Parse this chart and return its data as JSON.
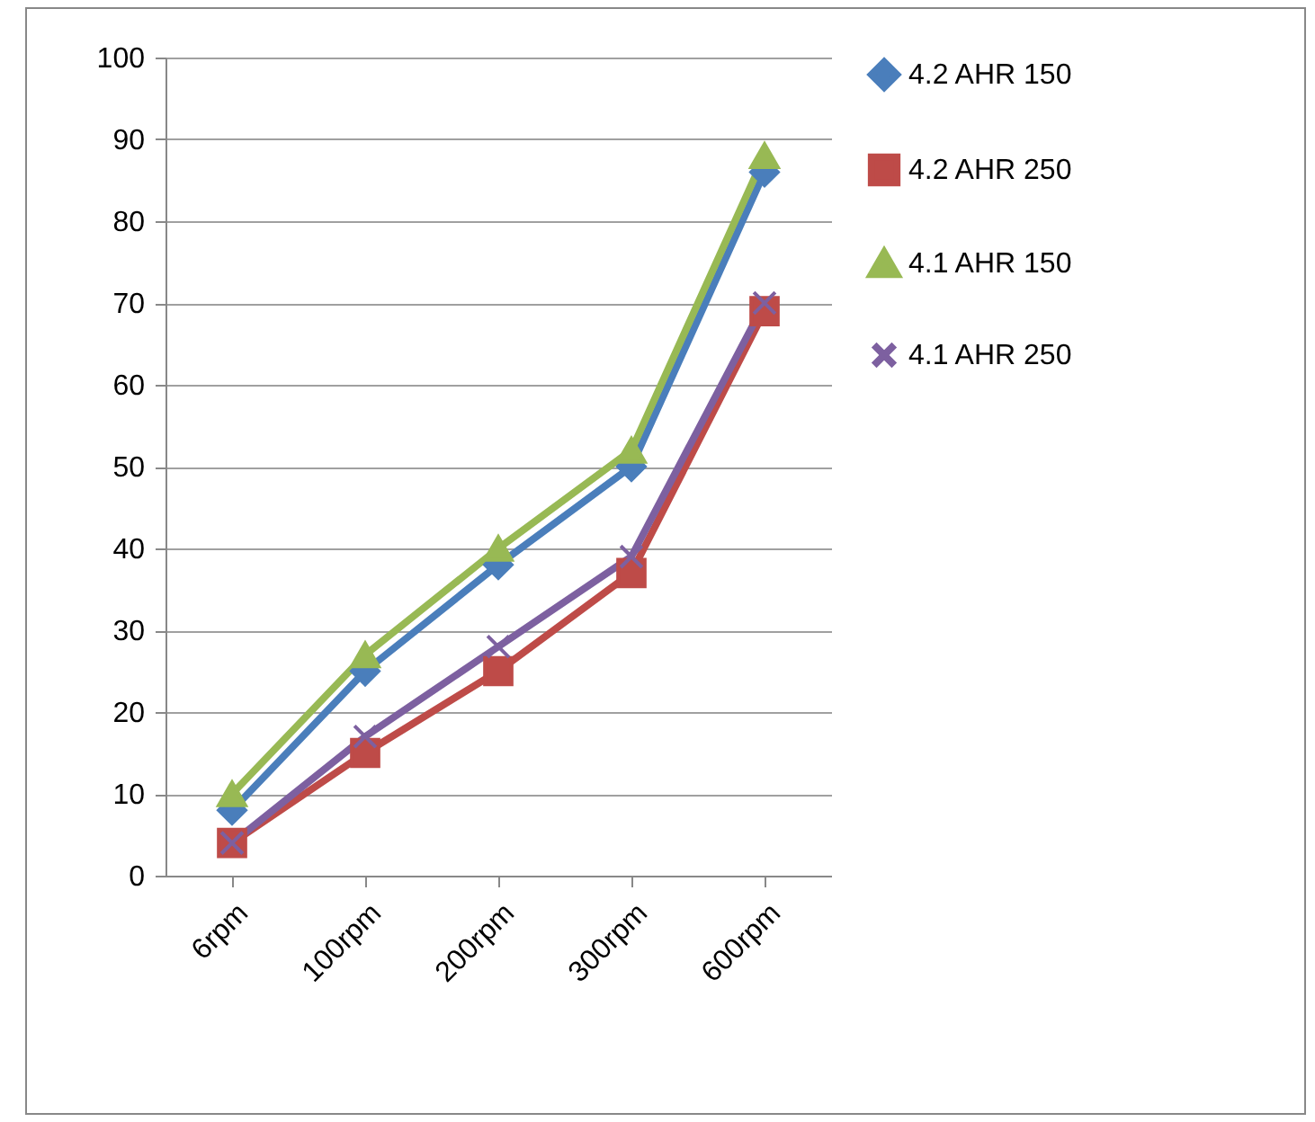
{
  "chart_data": {
    "type": "line",
    "categories": [
      "6rpm",
      "100rpm",
      "200rpm",
      "300rpm",
      "600rpm"
    ],
    "series": [
      {
        "name": "4.2 AHR 150",
        "color": "#4a7ebb",
        "marker": "diamond",
        "values": [
          8,
          25,
          38,
          50,
          86
        ]
      },
      {
        "name": "4.2 AHR 250",
        "color": "#be4b48",
        "marker": "square",
        "values": [
          4,
          15,
          25,
          37,
          69
        ]
      },
      {
        "name": "4.1 AHR 150",
        "color": "#98b954",
        "marker": "triangle",
        "values": [
          10,
          27,
          40,
          52,
          88
        ]
      },
      {
        "name": "4.1 AHR 250",
        "color": "#7d60a0",
        "marker": "cross",
        "values": [
          4,
          17,
          28,
          39,
          70
        ]
      }
    ],
    "ylim": [
      0,
      100
    ],
    "yticks": [
      0,
      10,
      20,
      30,
      40,
      50,
      60,
      70,
      80,
      90,
      100
    ],
    "grid": "y",
    "legend": "right",
    "line_style": "solid"
  }
}
